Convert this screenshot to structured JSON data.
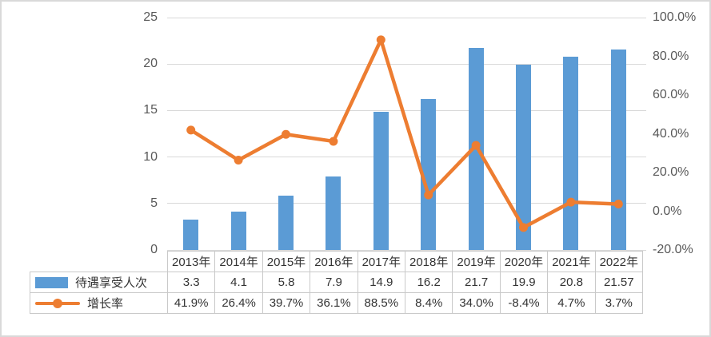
{
  "frame": {
    "background": "#ffffff",
    "border_color": "#d9d9d9"
  },
  "chart_data": {
    "type": "bar+line",
    "categories": [
      "2013年",
      "2014年",
      "2015年",
      "2016年",
      "2017年",
      "2018年",
      "2019年",
      "2020年",
      "2021年",
      "2022年"
    ],
    "series": [
      {
        "name": "待遇享受人次",
        "type": "bar",
        "axis": "left",
        "color": "#5b9bd5",
        "values": [
          3.3,
          4.1,
          5.8,
          7.9,
          14.9,
          16.2,
          21.7,
          19.9,
          20.8,
          21.57
        ],
        "labels": [
          "3.3",
          "4.1",
          "5.8",
          "7.9",
          "14.9",
          "16.2",
          "21.7",
          "19.9",
          "20.8",
          "21.57"
        ]
      },
      {
        "name": "增长率",
        "type": "line",
        "axis": "right",
        "color": "#ed7d31",
        "values": [
          41.9,
          26.4,
          39.7,
          36.1,
          88.5,
          8.4,
          34.0,
          -8.4,
          4.7,
          3.7
        ],
        "labels": [
          "41.9%",
          "26.4%",
          "39.7%",
          "36.1%",
          "88.5%",
          "8.4%",
          "34.0%",
          "-8.4%",
          "4.7%",
          "3.7%"
        ]
      }
    ],
    "left_axis": {
      "min": 0,
      "max": 25,
      "tick_values": [
        0,
        5,
        10,
        15,
        20,
        25
      ],
      "tick_labels": [
        "0",
        "5",
        "10",
        "15",
        "20",
        "25"
      ]
    },
    "right_axis": {
      "min": -20,
      "max": 100,
      "tick_values": [
        -20,
        0,
        20,
        40,
        60,
        80,
        100
      ],
      "tick_labels": [
        "-20.0%",
        "0.0%",
        "20.0%",
        "40.0%",
        "60.0%",
        "80.0%",
        "100.0%"
      ]
    },
    "grid": true,
    "legend_position": "table-left",
    "colors": {
      "gridline": "#d9d9d9",
      "table_border": "#c9c9c9",
      "axis_text": "#595959",
      "table_text": "#333333"
    }
  }
}
